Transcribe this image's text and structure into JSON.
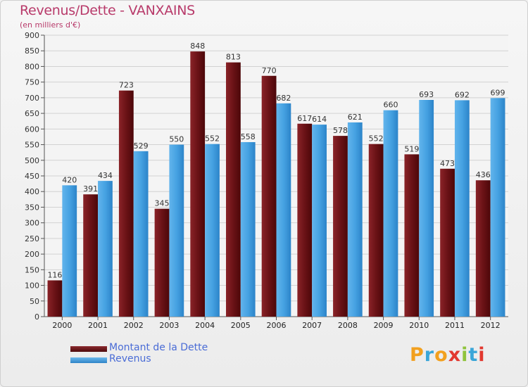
{
  "header": {
    "title": "Revenus/Dette - VANXAINS",
    "subtitle": "(en milliers d'€)"
  },
  "chart_data": {
    "type": "bar",
    "categories": [
      "2000",
      "2001",
      "2002",
      "2003",
      "2004",
      "2005",
      "2006",
      "2007",
      "2008",
      "2009",
      "2010",
      "2011",
      "2012"
    ],
    "series": [
      {
        "name": "Montant de la Dette",
        "color": "#6e1418",
        "values": [
          116,
          391,
          723,
          345,
          848,
          813,
          770,
          617,
          578,
          552,
          519,
          473,
          436
        ]
      },
      {
        "name": "Revenus",
        "color": "#3d9ce0",
        "values": [
          420,
          434,
          529,
          550,
          552,
          558,
          682,
          614,
          621,
          660,
          693,
          692,
          699
        ]
      }
    ],
    "ylim": [
      0,
      900
    ],
    "yticks": [
      0,
      50,
      100,
      150,
      200,
      250,
      300,
      350,
      400,
      450,
      500,
      550,
      600,
      650,
      700,
      750,
      800,
      850,
      900
    ],
    "grid": true,
    "legend_position": "bottom-left"
  },
  "brand": {
    "letters": [
      "P",
      "r",
      "o",
      "x",
      "i",
      "t",
      "i"
    ],
    "colors": [
      "#f2a01e",
      "#3aa6d8",
      "#f2a01e",
      "#e2382f",
      "#8fc43c",
      "#3aa6d8",
      "#e2382f"
    ]
  }
}
